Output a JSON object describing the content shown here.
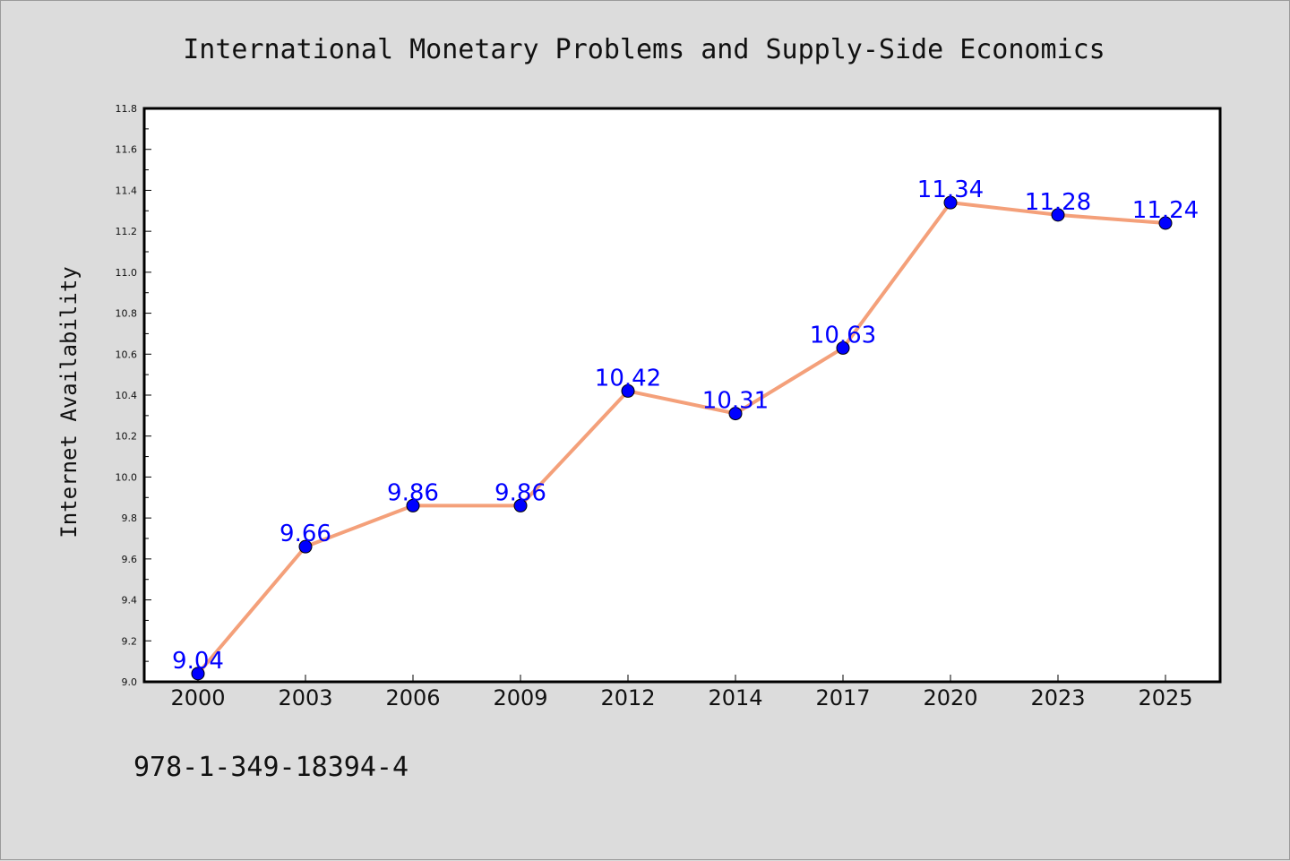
{
  "colors": {
    "background": "#dcdcdc",
    "plot_background": "#ffffff",
    "line": "#f4a07a",
    "marker": "#0000ff",
    "data_label": "#0000ff"
  },
  "footer": {
    "isbn": "978-1-349-18394-4"
  },
  "chart_data": {
    "type": "line",
    "title": "International Monetary Problems and Supply-Side Economics",
    "xlabel": "",
    "ylabel": "Internet Availability",
    "categories": [
      "2000",
      "2003",
      "2006",
      "2009",
      "2012",
      "2014",
      "2017",
      "2020",
      "2023",
      "2025"
    ],
    "values": [
      9.04,
      9.66,
      9.86,
      9.86,
      10.42,
      10.31,
      10.63,
      11.34,
      11.28,
      11.24
    ],
    "data_labels": [
      "9.04",
      "9.66",
      "9.86",
      "9.86",
      "10.42",
      "10.31",
      "10.63",
      "11.34",
      "11.28",
      "11.24"
    ],
    "ylim": [
      9.0,
      11.8
    ],
    "yticks": [
      "9.0",
      "9.2",
      "9.4",
      "9.6",
      "9.8",
      "10.0",
      "10.2",
      "10.4",
      "10.6",
      "10.8",
      "11.0",
      "11.2",
      "11.4",
      "11.6",
      "11.8"
    ],
    "grid": false,
    "legend": "none"
  }
}
